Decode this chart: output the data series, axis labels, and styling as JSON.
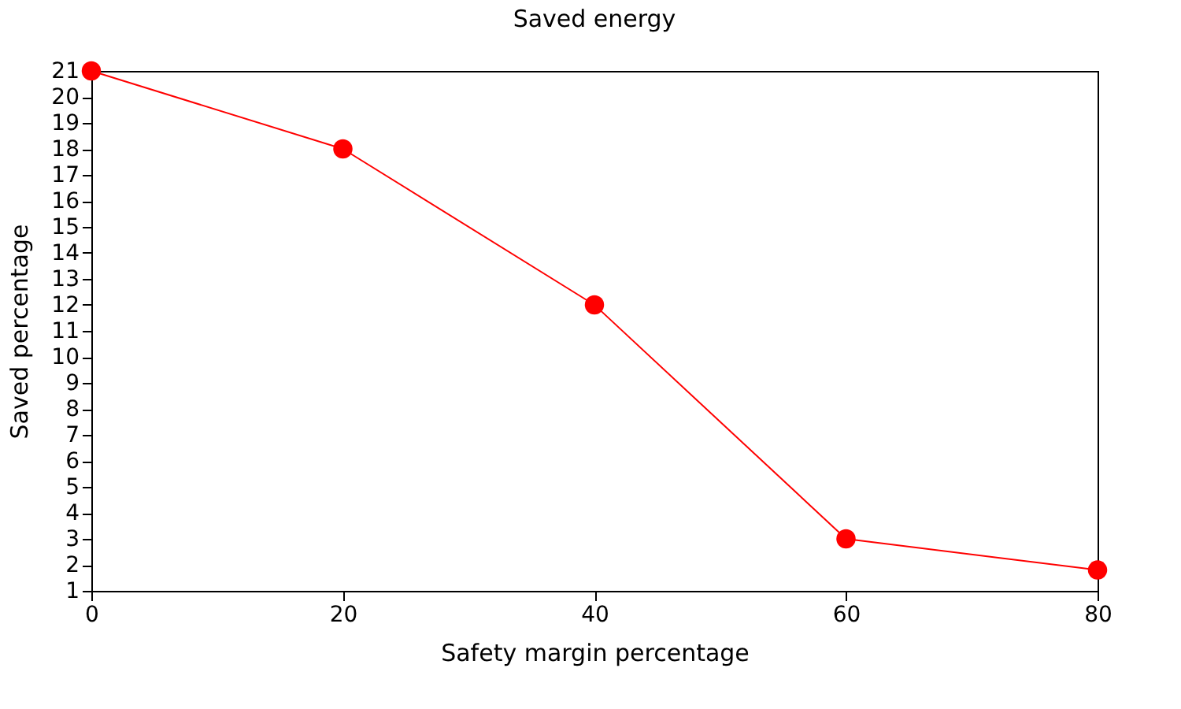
{
  "chart_data": {
    "type": "line",
    "title": "Saved energy",
    "xlabel": "Safety margin percentage",
    "ylabel": "Saved percentage",
    "x": [
      0,
      20,
      40,
      60,
      80
    ],
    "series": [
      {
        "color": "#ff0000",
        "values": [
          21,
          18,
          12,
          3,
          1.8
        ]
      }
    ],
    "xlim": [
      0,
      80
    ],
    "xticks": [
      0,
      20,
      40,
      60,
      80
    ],
    "ylim": [
      1,
      21
    ],
    "yticks": [
      1,
      2,
      3,
      4,
      5,
      6,
      7,
      8,
      9,
      10,
      11,
      12,
      13,
      14,
      15,
      16,
      17,
      18,
      19,
      20,
      21
    ],
    "grid": false,
    "marker": "circle",
    "line_style": "solid"
  }
}
